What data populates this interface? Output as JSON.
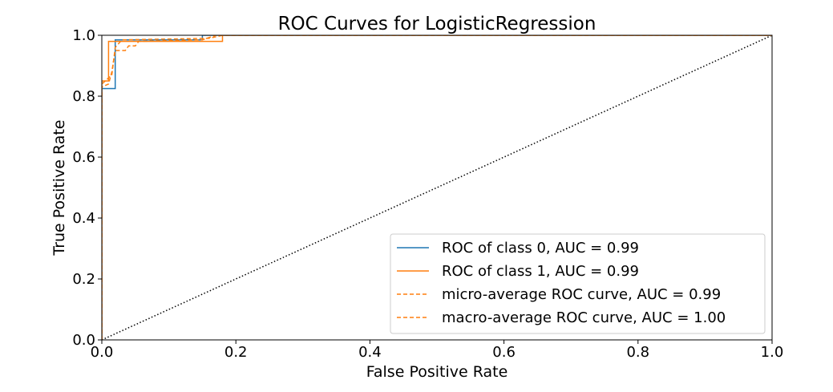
{
  "chart_data": {
    "type": "line",
    "title": "ROC Curves for LogisticRegression",
    "xlabel": "False Positive Rate",
    "ylabel": "True Positive Rate",
    "xlim": [
      0.0,
      1.0
    ],
    "ylim": [
      0.0,
      1.0
    ],
    "xticks": [
      "0.0",
      "0.2",
      "0.4",
      "0.6",
      "0.8",
      "1.0"
    ],
    "yticks": [
      "0.0",
      "0.2",
      "0.4",
      "0.6",
      "0.8",
      "1.0"
    ],
    "grid": false,
    "legend_position": "lower-right",
    "series": [
      {
        "name": "ROC of class 0, AUC = 0.99",
        "color": "#1f77b4",
        "style": "solid",
        "points": [
          [
            0,
            0
          ],
          [
            0,
            0.825
          ],
          [
            0.02,
            0.825
          ],
          [
            0.02,
            0.985
          ],
          [
            0.15,
            0.985
          ],
          [
            0.15,
            1.0
          ],
          [
            1.0,
            1.0
          ]
        ]
      },
      {
        "name": "ROC of class 1, AUC = 0.99",
        "color": "#ff7f0e",
        "style": "solid",
        "points": [
          [
            0,
            0
          ],
          [
            0,
            0.85
          ],
          [
            0.01,
            0.85
          ],
          [
            0.01,
            0.98
          ],
          [
            0.18,
            0.98
          ],
          [
            0.18,
            1.0
          ],
          [
            1.0,
            1.0
          ]
        ]
      },
      {
        "name": "micro-average ROC curve, AUC = 0.99",
        "color": "#ff7f0e",
        "style": "dashed",
        "points": [
          [
            0,
            0
          ],
          [
            0,
            0.83
          ],
          [
            0.01,
            0.84
          ],
          [
            0.015,
            0.88
          ],
          [
            0.02,
            0.95
          ],
          [
            0.035,
            0.95
          ],
          [
            0.04,
            0.965
          ],
          [
            0.05,
            0.965
          ],
          [
            0.055,
            0.98
          ],
          [
            0.15,
            0.985
          ],
          [
            0.17,
            1.0
          ],
          [
            1.0,
            1.0
          ]
        ]
      },
      {
        "name": "macro-average ROC curve, AUC = 1.00",
        "color": "#ff7f0e",
        "style": "dashed",
        "points": [
          [
            0,
            0
          ],
          [
            0,
            0.84
          ],
          [
            0.015,
            0.87
          ],
          [
            0.02,
            0.96
          ],
          [
            0.03,
            0.985
          ],
          [
            0.16,
            0.99
          ],
          [
            0.18,
            1.0
          ],
          [
            1.0,
            1.0
          ]
        ]
      }
    ],
    "reference_line": {
      "color": "#000000",
      "style": "dotted",
      "points": [
        [
          0,
          0
        ],
        [
          1,
          1
        ]
      ]
    }
  }
}
